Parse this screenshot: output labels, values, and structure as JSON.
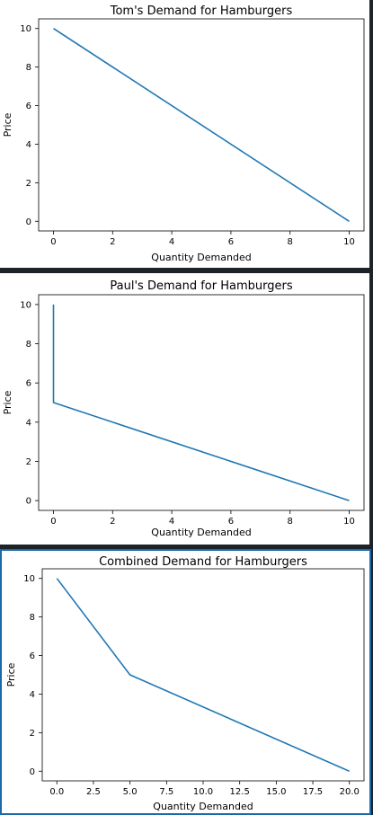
{
  "chart_data": [
    {
      "type": "line",
      "title": "Tom's Demand for Hamburgers",
      "xlabel": "Quantity Demanded",
      "ylabel": "Price",
      "xlim": [
        -0.5,
        10.5
      ],
      "ylim": [
        -0.5,
        10.5
      ],
      "xticks": [
        0,
        2,
        4,
        6,
        8,
        10
      ],
      "xtick_labels": [
        "0",
        "2",
        "4",
        "6",
        "8",
        "10"
      ],
      "yticks": [
        0,
        2,
        4,
        6,
        8,
        10
      ],
      "ytick_labels": [
        "0",
        "2",
        "4",
        "6",
        "8",
        "10"
      ],
      "x": [
        0,
        10
      ],
      "y": [
        10,
        0
      ],
      "color": "#1f77b4",
      "grid": false
    },
    {
      "type": "line",
      "title": "Paul's Demand for Hamburgers",
      "xlabel": "Quantity Demanded",
      "ylabel": "Price",
      "xlim": [
        -0.5,
        10.5
      ],
      "ylim": [
        -0.5,
        10.5
      ],
      "xticks": [
        0,
        2,
        4,
        6,
        8,
        10
      ],
      "xtick_labels": [
        "0",
        "2",
        "4",
        "6",
        "8",
        "10"
      ],
      "yticks": [
        0,
        2,
        4,
        6,
        8,
        10
      ],
      "ytick_labels": [
        "0",
        "2",
        "4",
        "6",
        "8",
        "10"
      ],
      "x": [
        0,
        0,
        10
      ],
      "y": [
        10,
        5,
        0
      ],
      "color": "#1f77b4",
      "grid": false
    },
    {
      "type": "line",
      "title": "Combined Demand for Hamburgers",
      "xlabel": "Quantity Demanded",
      "ylabel": "Price",
      "xlim": [
        -1,
        21
      ],
      "ylim": [
        -0.5,
        10.5
      ],
      "xticks": [
        0,
        2.5,
        5,
        7.5,
        10,
        12.5,
        15,
        17.5,
        20
      ],
      "xtick_labels": [
        "0.0",
        "2.5",
        "5.0",
        "7.5",
        "10.0",
        "12.5",
        "15.0",
        "17.5",
        "20.0"
      ],
      "yticks": [
        0,
        2,
        4,
        6,
        8,
        10
      ],
      "ytick_labels": [
        "0",
        "2",
        "4",
        "6",
        "8",
        "10"
      ],
      "x": [
        0,
        5,
        20
      ],
      "y": [
        10,
        5,
        0
      ],
      "color": "#1f77b4",
      "grid": false
    }
  ]
}
